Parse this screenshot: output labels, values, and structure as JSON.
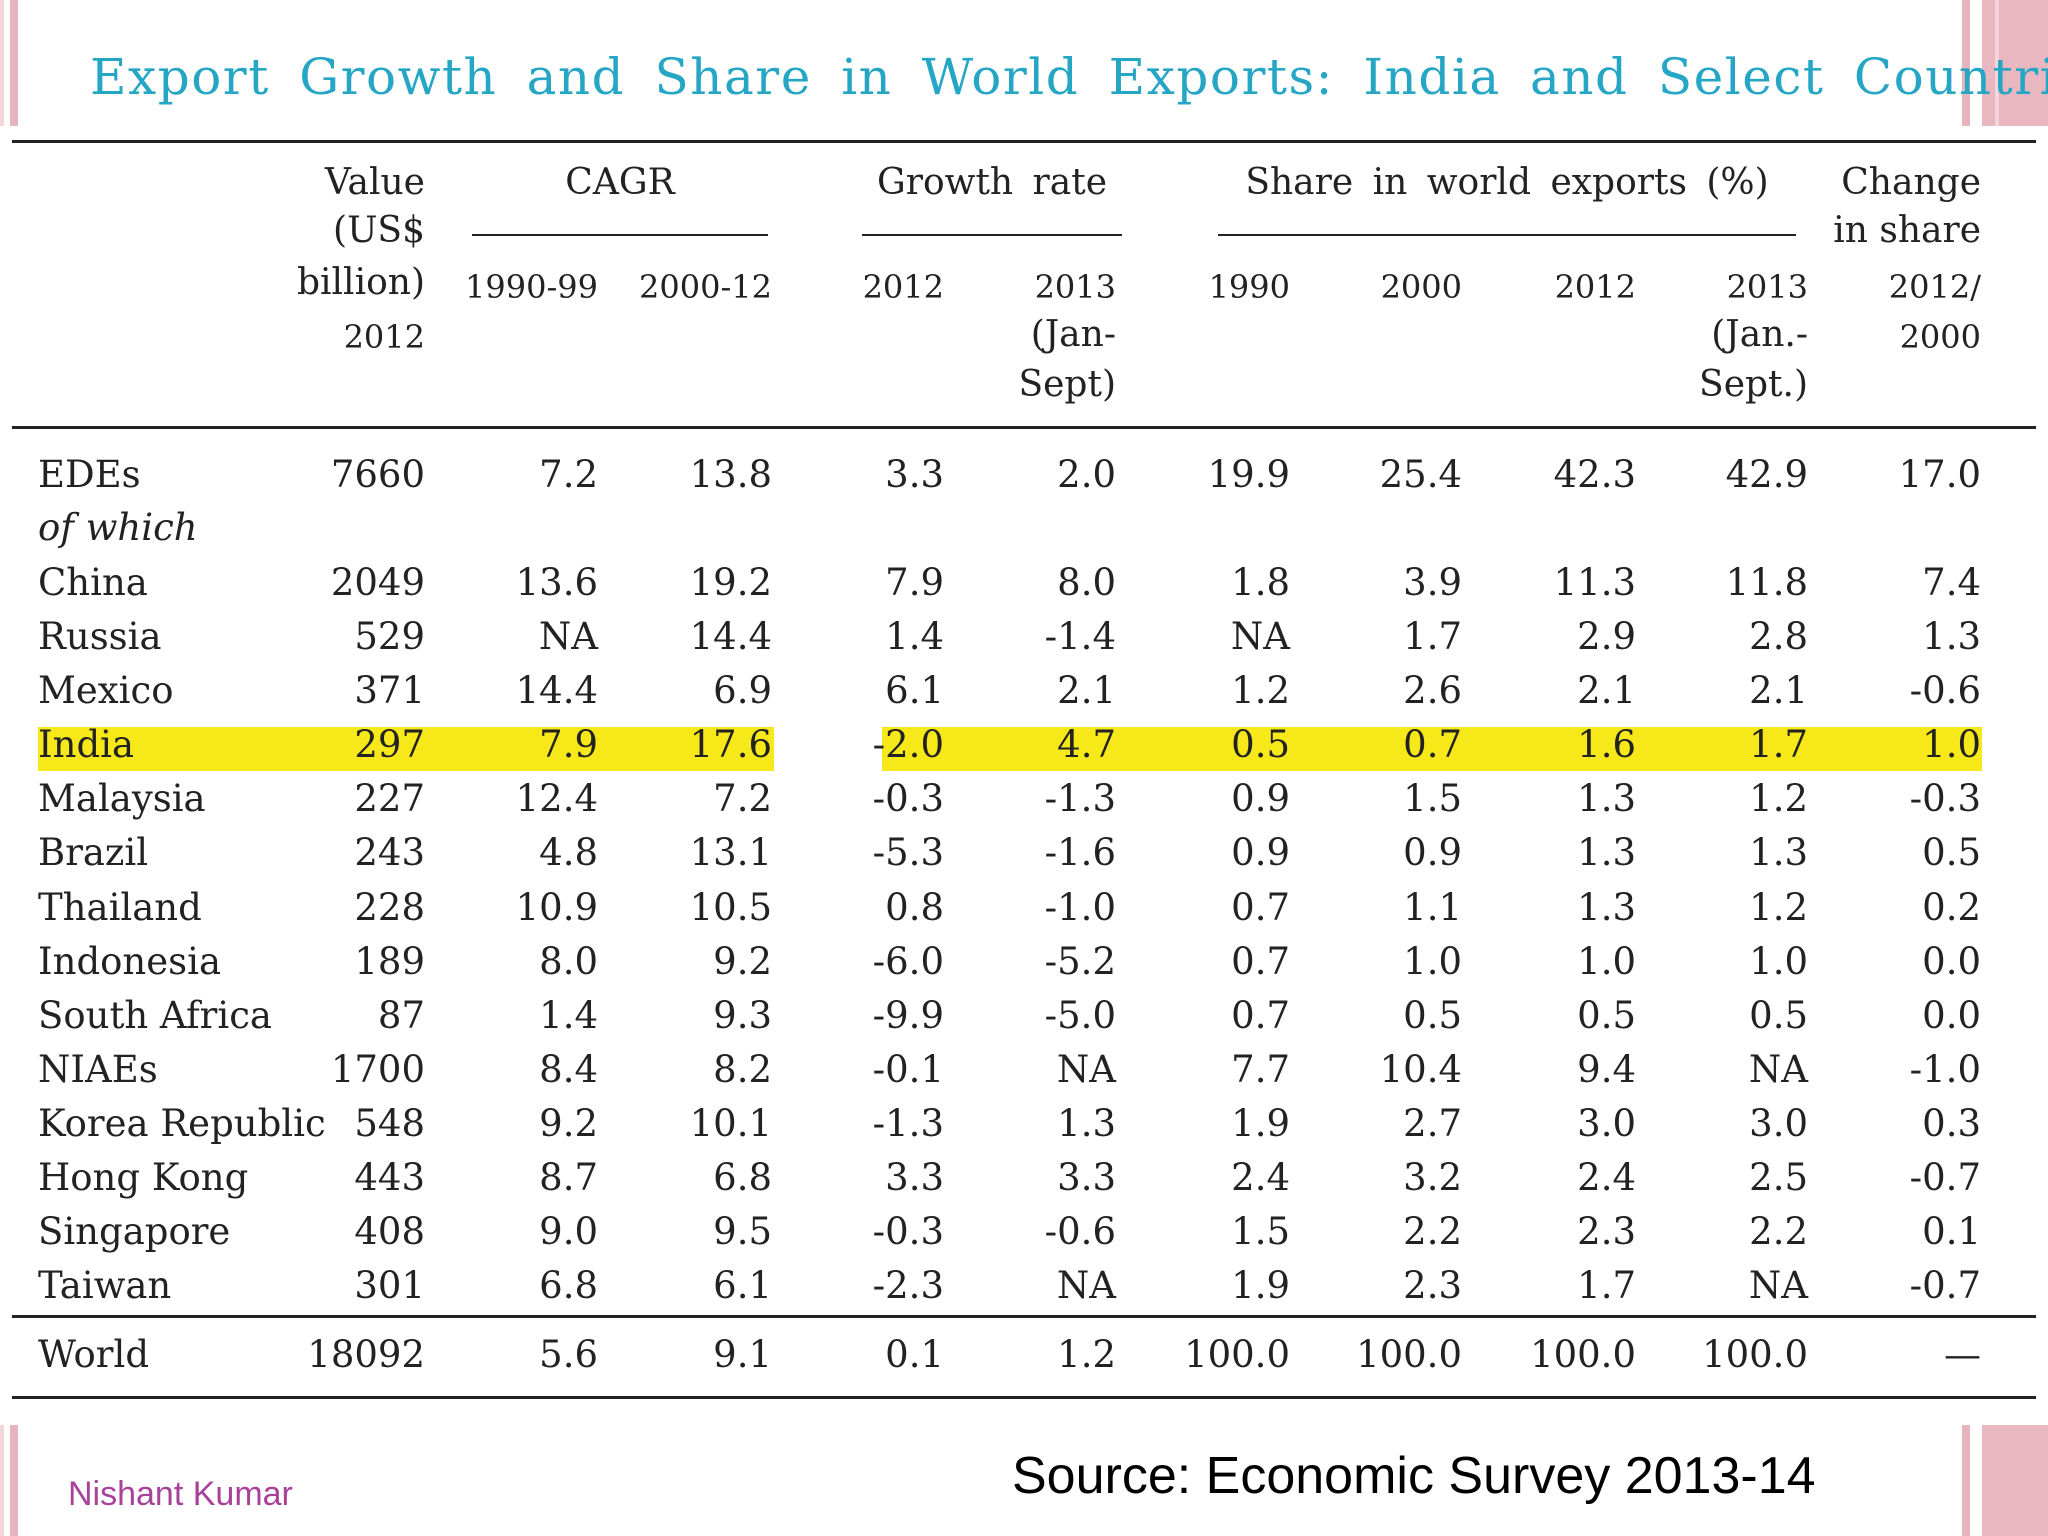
{
  "title": "Export Growth and Share in World Exports: India and Select Countries",
  "headers": {
    "value": [
      "Value",
      "(US$",
      "billion)",
      "2012"
    ],
    "cagr": "CAGR",
    "cagr_1990": "1990-99",
    "cagr_2000": "2000-12",
    "growth": "Growth rate",
    "growth_2012": "2012",
    "growth_2013": [
      "2013",
      "(Jan-",
      "Sept)"
    ],
    "share": "Share in world exports (%)",
    "share_1990": "1990",
    "share_2000": "2000",
    "share_2012": "2012",
    "share_2013": [
      "2013",
      "(Jan.-",
      "Sept.)"
    ],
    "change": [
      "Change",
      "in share",
      "2012/",
      "2000"
    ]
  },
  "sub_label": "of which",
  "rows": [
    {
      "name": "EDEs",
      "cells": [
        "7660",
        "7.2",
        "13.8",
        "3.3",
        "2.0",
        "19.9",
        "25.4",
        "42.3",
        "42.9",
        "17.0"
      ]
    },
    {
      "name": "China",
      "cells": [
        "2049",
        "13.6",
        "19.2",
        "7.9",
        "8.0",
        "1.8",
        "3.9",
        "11.3",
        "11.8",
        "7.4"
      ]
    },
    {
      "name": "Russia",
      "cells": [
        "529",
        "NA",
        "14.4",
        "1.4",
        "-1.4",
        "NA",
        "1.7",
        "2.9",
        "2.8",
        "1.3"
      ]
    },
    {
      "name": "Mexico",
      "cells": [
        "371",
        "14.4",
        "6.9",
        "6.1",
        "2.1",
        "1.2",
        "2.6",
        "2.1",
        "2.1",
        "-0.6"
      ]
    },
    {
      "name": "India",
      "cells": [
        "297",
        "7.9",
        "17.6",
        "-2.0",
        "4.7",
        "0.5",
        "0.7",
        "1.6",
        "1.7",
        "1.0"
      ]
    },
    {
      "name": "Malaysia",
      "cells": [
        "227",
        "12.4",
        "7.2",
        "-0.3",
        "-1.3",
        "0.9",
        "1.5",
        "1.3",
        "1.2",
        "-0.3"
      ]
    },
    {
      "name": "Brazil",
      "cells": [
        "243",
        "4.8",
        "13.1",
        "-5.3",
        "-1.6",
        "0.9",
        "0.9",
        "1.3",
        "1.3",
        "0.5"
      ]
    },
    {
      "name": "Thailand",
      "cells": [
        "228",
        "10.9",
        "10.5",
        "0.8",
        "-1.0",
        "0.7",
        "1.1",
        "1.3",
        "1.2",
        "0.2"
      ]
    },
    {
      "name": "Indonesia",
      "cells": [
        "189",
        "8.0",
        "9.2",
        "-6.0",
        "-5.2",
        "0.7",
        "1.0",
        "1.0",
        "1.0",
        "0.0"
      ]
    },
    {
      "name": "South Africa",
      "cells": [
        "87",
        "1.4",
        "9.3",
        "-9.9",
        "-5.0",
        "0.7",
        "0.5",
        "0.5",
        "0.5",
        "0.0"
      ]
    },
    {
      "name": "NIAEs",
      "cells": [
        "1700",
        "8.4",
        "8.2",
        "-0.1",
        "NA",
        "7.7",
        "10.4",
        "9.4",
        "NA",
        "-1.0"
      ]
    },
    {
      "name": "Korea Republic",
      "cells": [
        "548",
        "9.2",
        "10.1",
        "-1.3",
        "1.3",
        "1.9",
        "2.7",
        "3.0",
        "3.0",
        "0.3"
      ]
    },
    {
      "name": "Hong Kong",
      "cells": [
        "443",
        "8.7",
        "6.8",
        "3.3",
        "3.3",
        "2.4",
        "3.2",
        "2.4",
        "2.5",
        "-0.7"
      ]
    },
    {
      "name": "Singapore",
      "cells": [
        "408",
        "9.0",
        "9.5",
        "-0.3",
        "-0.6",
        "1.5",
        "2.2",
        "2.3",
        "2.2",
        "0.1"
      ]
    },
    {
      "name": "Taiwan",
      "cells": [
        "301",
        "6.8",
        "6.1",
        "-2.3",
        "NA",
        "1.9",
        "2.3",
        "1.7",
        "NA",
        "-0.7"
      ]
    },
    {
      "name": "World",
      "cells": [
        "18092",
        "5.6",
        "9.1",
        "0.1",
        "1.2",
        "100.0",
        "100.0",
        "100.0",
        "100.0",
        "—"
      ]
    }
  ],
  "highlight_row": "India",
  "highlight_color": "#f7e81a",
  "title_color": "#25a6c4",
  "author": "Nishant Kumar",
  "source": "Source: Economic Survey 2013-14"
}
